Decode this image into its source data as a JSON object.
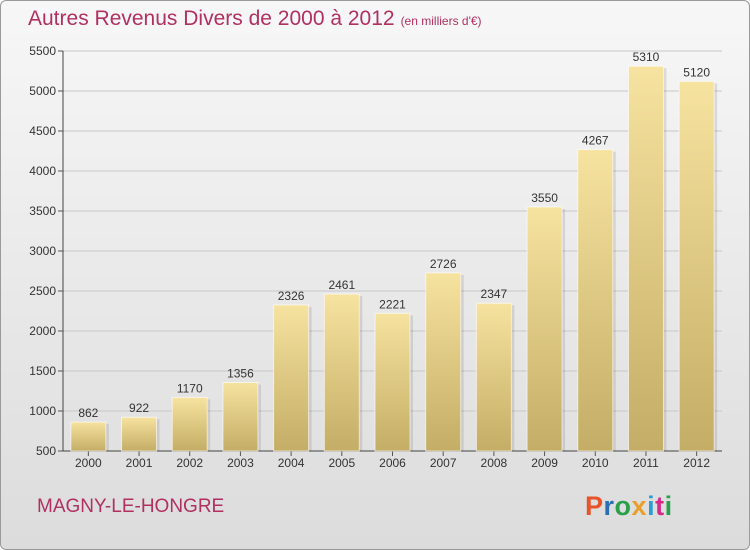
{
  "header": {
    "title": "Autres Revenus Divers de 2000 à 2012",
    "unit": "(en milliers d'€)"
  },
  "footer": {
    "place": "MAGNY-LE-HONGRE",
    "logo": "Proxiti",
    "logo_colors": [
      "#e8542a",
      "#2a6fb5",
      "#2aa04a",
      "#e8a02a",
      "#2a9fd5",
      "#d52a8a",
      "#2aa04a"
    ]
  },
  "colors": {
    "title": "#b03060",
    "bar_light": "#f6e39f",
    "bar_dark": "#c4ad66",
    "grid": "#c8c8c8"
  },
  "chart_data": {
    "type": "bar",
    "title": "Autres Revenus Divers de 2000 à 2012",
    "subtitle": "(en milliers d'€)",
    "categories": [
      "2000",
      "2001",
      "2002",
      "2003",
      "2004",
      "2005",
      "2006",
      "2007",
      "2008",
      "2009",
      "2010",
      "2011",
      "2012"
    ],
    "values": [
      862,
      922,
      1170,
      1356,
      2326,
      2461,
      2221,
      2726,
      2347,
      3550,
      4267,
      5310,
      5120
    ],
    "ylim": [
      500,
      5500
    ],
    "yticks": [
      500,
      1000,
      1500,
      2000,
      2500,
      3000,
      3500,
      4000,
      4500,
      5000,
      5500
    ],
    "grid": true,
    "xlabel": "",
    "ylabel": ""
  }
}
